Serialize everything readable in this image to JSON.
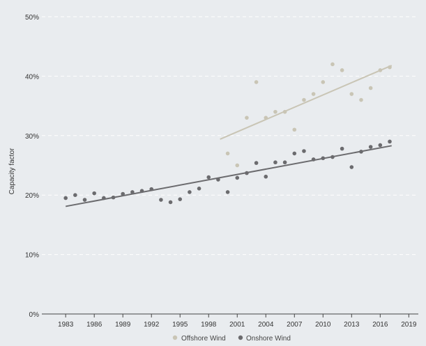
{
  "chart_data": {
    "type": "scatter",
    "ylabel": "Capacity factor",
    "xlabel": "",
    "ylim": [
      0,
      50
    ],
    "xlim": [
      1980.5,
      2020
    ],
    "grid": "horizontal dashed",
    "legend_position": "bottom-center",
    "x_ticks": [
      1983,
      1986,
      1989,
      1992,
      1995,
      1998,
      2001,
      2004,
      2007,
      2010,
      2013,
      2016,
      2019
    ],
    "x_tick_labels": [
      "1983",
      "1986",
      "1989",
      "1992",
      "1995",
      "1998",
      "2001",
      "2004",
      "2007",
      "2010",
      "2013",
      "2016",
      "2019"
    ],
    "y_ticks": [
      0,
      10,
      20,
      30,
      40,
      50
    ],
    "y_tick_labels": [
      "0%",
      "10%",
      "20%",
      "30%",
      "40%",
      "50%"
    ],
    "series": [
      {
        "name": "Offshore Wind",
        "color": "#c9c5b5",
        "x": [
          2000,
          2001,
          2002,
          2003,
          2004,
          2005,
          2006,
          2007,
          2008,
          2009,
          2010,
          2011,
          2012,
          2013,
          2014,
          2015,
          2016,
          2017
        ],
        "y": [
          27,
          25,
          33,
          39,
          33,
          34,
          34,
          31,
          36,
          37,
          39,
          42,
          41,
          37,
          36,
          38,
          41,
          41.5
        ],
        "trend": {
          "x": [
            1999.2,
            2017.2
          ],
          "y": [
            29.4,
            41.8
          ]
        }
      },
      {
        "name": "Onshore Wind",
        "color": "#6b6b6e",
        "x": [
          1983,
          1984,
          1985,
          1986,
          1987,
          1988,
          1989,
          1990,
          1991,
          1992,
          1993,
          1994,
          1995,
          1996,
          1997,
          1998,
          1999,
          2000,
          2001,
          2002,
          2003,
          2004,
          2005,
          2006,
          2007,
          2008,
          2009,
          2010,
          2011,
          2012,
          2013,
          2014,
          2015,
          2016,
          2017
        ],
        "y": [
          19.5,
          20,
          19.2,
          20.3,
          19.5,
          19.6,
          20.2,
          20.5,
          20.7,
          21,
          19.2,
          18.8,
          19.3,
          20.5,
          21.1,
          23,
          22.6,
          20.5,
          22.9,
          23.7,
          25.4,
          23.1,
          25.5,
          25.5,
          27,
          27.4,
          26,
          26.2,
          26.4,
          27.8,
          24.7,
          27.3,
          28.1,
          28.4,
          29
        ],
        "trend": {
          "x": [
            1983,
            2017.2
          ],
          "y": [
            18.1,
            28.3
          ]
        }
      }
    ]
  }
}
